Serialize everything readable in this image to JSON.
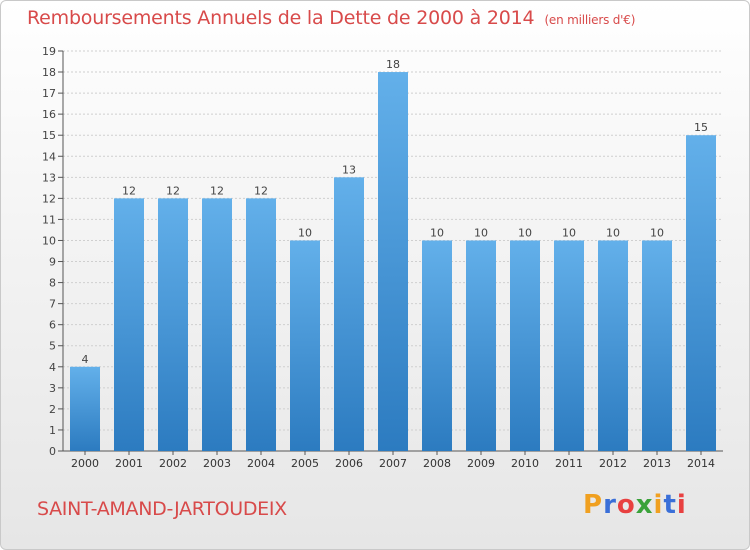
{
  "title": "Remboursements Annuels de la Dette de 2000 à 2014",
  "unit_note": "(en milliers d'€)",
  "city": "SAINT-AMAND-JARTOUDEIX",
  "logo": {
    "text": "Proxiti",
    "colors": [
      "#f0a020",
      "#3a6fd8",
      "#e84040",
      "#3aa23a",
      "#f0a020",
      "#3a6fd8",
      "#e84040"
    ]
  },
  "colors": {
    "bar_light": "#63b0ea",
    "bar_dark": "#2c7bc0",
    "title": "#d84a4a",
    "grid": "#cfcfcf"
  },
  "chart_data": {
    "type": "bar",
    "title": "Remboursements Annuels de la Dette de 2000 à 2014",
    "xlabel": "",
    "ylabel": "",
    "categories": [
      "2000",
      "2001",
      "2002",
      "2003",
      "2004",
      "2005",
      "2006",
      "2007",
      "2008",
      "2009",
      "2010",
      "2011",
      "2012",
      "2013",
      "2014"
    ],
    "values": [
      4,
      12,
      12,
      12,
      12,
      10,
      13,
      18,
      10,
      10,
      10,
      10,
      10,
      10,
      15
    ],
    "ylim": [
      0,
      19
    ],
    "yticks": [
      0,
      1,
      2,
      3,
      4,
      5,
      6,
      7,
      8,
      9,
      10,
      11,
      12,
      13,
      14,
      15,
      16,
      17,
      18,
      19
    ],
    "grid": true
  }
}
